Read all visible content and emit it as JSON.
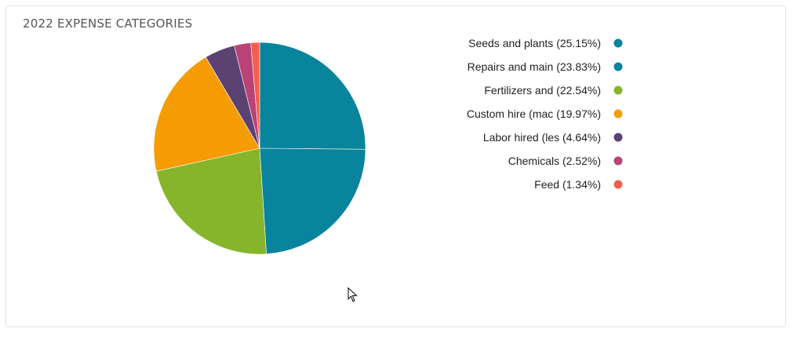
{
  "card": {
    "title": "2022 EXPENSE CATEGORIES"
  },
  "chart_data": {
    "type": "pie",
    "title": "2022 EXPENSE CATEGORIES",
    "legend_position": "right",
    "categories": [
      "Seeds and plants",
      "Repairs and main",
      "Fertilizers and",
      "Custom hire (mac",
      "Labor hired (les",
      "Chemicals",
      "Feed"
    ],
    "values": [
      25.15,
      23.83,
      22.54,
      19.97,
      4.64,
      2.52,
      1.34
    ],
    "legend_labels": [
      "Seeds and plants (25.15%)",
      "Repairs and main (23.83%)",
      "Fertilizers and (22.54%)",
      "Custom hire (mac (19.97%)",
      "Labor hired (les (4.64%)",
      "Chemicals (2.52%)",
      "Feed (1.34%)"
    ],
    "colors": [
      "#08849c",
      "#08849c",
      "#86b52b",
      "#f59c04",
      "#5b4272",
      "#b94277",
      "#f0614e"
    ]
  }
}
